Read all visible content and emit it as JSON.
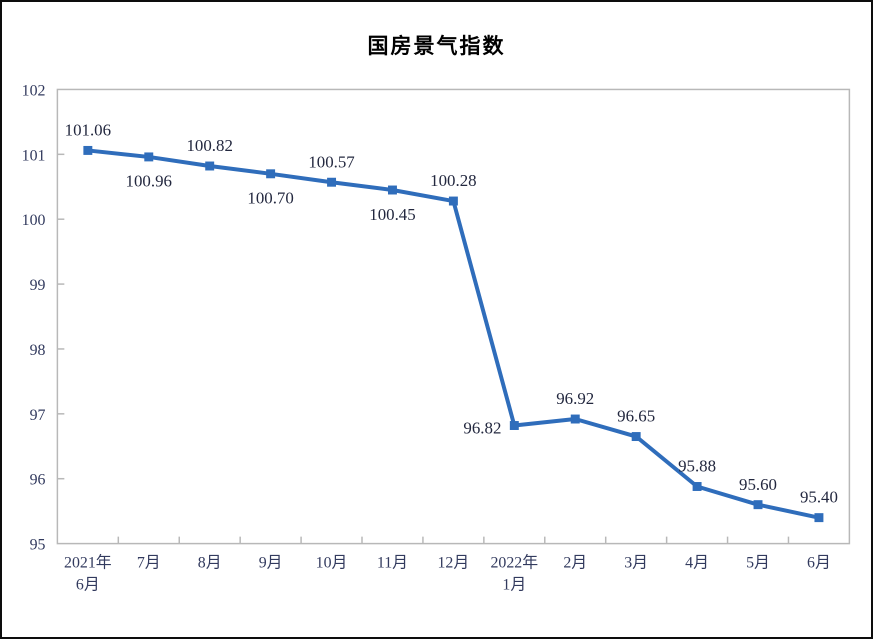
{
  "page": {
    "border_color": "#0d0d0d",
    "background_color": "#ffffff"
  },
  "chart_data": {
    "type": "line",
    "title": "国房景气指数",
    "xlabel": "",
    "ylabel": "",
    "categories": [
      [
        "2021年",
        "6月"
      ],
      [
        "7月"
      ],
      [
        "8月"
      ],
      [
        "9月"
      ],
      [
        "10月"
      ],
      [
        "11月"
      ],
      [
        "12月"
      ],
      [
        "2022年",
        "1月"
      ],
      [
        "2月"
      ],
      [
        "3月"
      ],
      [
        "4月"
      ],
      [
        "5月"
      ],
      [
        "6月"
      ]
    ],
    "values": [
      101.06,
      100.96,
      100.82,
      100.7,
      100.57,
      100.45,
      100.28,
      96.82,
      96.92,
      96.65,
      95.88,
      95.6,
      95.4
    ],
    "labels": [
      "101.06",
      "100.96",
      "100.82",
      "100.70",
      "100.57",
      "100.45",
      "100.28",
      "96.82",
      "96.92",
      "96.65",
      "95.88",
      "95.60",
      "95.40"
    ],
    "label_positions": [
      "above",
      "below",
      "above",
      "below",
      "above",
      "below",
      "above",
      "left",
      "above",
      "above",
      "above",
      "above",
      "above"
    ],
    "ylim": [
      95,
      102
    ],
    "ytick_step": 1,
    "ytick_labels": [
      "95",
      "96",
      "97",
      "98",
      "99",
      "100",
      "101",
      "102"
    ],
    "grid": false,
    "legend": "none",
    "marker": "square",
    "line_color": "#2f6dbb",
    "frame_color": "#b8b8b8",
    "axis_text_color": "#323a5e",
    "data_label_color": "#23283f",
    "title_color": "#000000"
  }
}
